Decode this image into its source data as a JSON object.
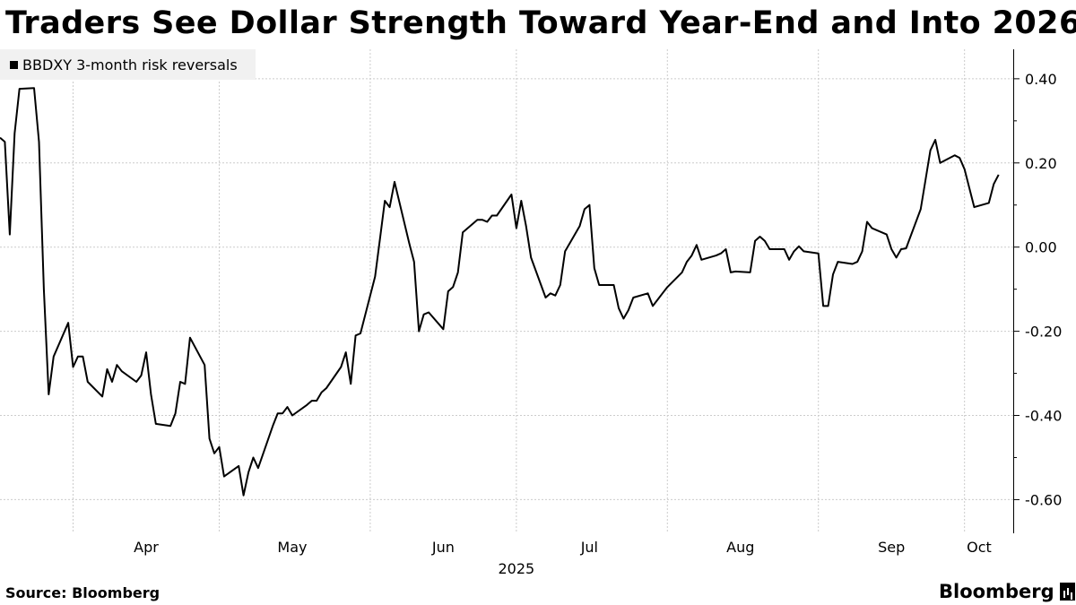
{
  "chart_data": {
    "type": "line",
    "title": "Traders See Dollar Strength Toward Year-End and Into 2026",
    "legend_position": "top-left",
    "grid": true,
    "series": [
      {
        "name": "BBDXY 3-month risk reversals",
        "color": "#000000",
        "points": [
          [
            "2025-03-17",
            0.26
          ],
          [
            "2025-03-18",
            0.25
          ],
          [
            "2025-03-19",
            0.03
          ],
          [
            "2025-03-20",
            0.27
          ],
          [
            "2025-03-21",
            0.376
          ],
          [
            "2025-03-24",
            0.378
          ],
          [
            "2025-03-25",
            0.25
          ],
          [
            "2025-03-26",
            -0.1
          ],
          [
            "2025-03-27",
            -0.35
          ],
          [
            "2025-03-28",
            -0.26
          ],
          [
            "2025-03-31",
            -0.18
          ],
          [
            "2025-04-01",
            -0.285
          ],
          [
            "2025-04-02",
            -0.26
          ],
          [
            "2025-04-03",
            -0.26
          ],
          [
            "2025-04-04",
            -0.32
          ],
          [
            "2025-04-07",
            -0.355
          ],
          [
            "2025-04-08",
            -0.29
          ],
          [
            "2025-04-09",
            -0.32
          ],
          [
            "2025-04-10",
            -0.28
          ],
          [
            "2025-04-11",
            -0.295
          ],
          [
            "2025-04-14",
            -0.32
          ],
          [
            "2025-04-15",
            -0.305
          ],
          [
            "2025-04-16",
            -0.25
          ],
          [
            "2025-04-17",
            -0.35
          ],
          [
            "2025-04-18",
            -0.42
          ],
          [
            "2025-04-21",
            -0.425
          ],
          [
            "2025-04-22",
            -0.395
          ],
          [
            "2025-04-23",
            -0.32
          ],
          [
            "2025-04-24",
            -0.325
          ],
          [
            "2025-04-25",
            -0.215
          ],
          [
            "2025-04-28",
            -0.28
          ],
          [
            "2025-04-29",
            -0.455
          ],
          [
            "2025-04-30",
            -0.49
          ],
          [
            "2025-05-01",
            -0.475
          ],
          [
            "2025-05-02",
            -0.545
          ],
          [
            "2025-05-05",
            -0.52
          ],
          [
            "2025-05-06",
            -0.59
          ],
          [
            "2025-05-07",
            -0.535
          ],
          [
            "2025-05-08",
            -0.5
          ],
          [
            "2025-05-09",
            -0.525
          ],
          [
            "2025-05-12",
            -0.425
          ],
          [
            "2025-05-13",
            -0.395
          ],
          [
            "2025-05-14",
            -0.395
          ],
          [
            "2025-05-15",
            -0.38
          ],
          [
            "2025-05-16",
            -0.4
          ],
          [
            "2025-05-19",
            -0.375
          ],
          [
            "2025-05-20",
            -0.365
          ],
          [
            "2025-05-21",
            -0.365
          ],
          [
            "2025-05-22",
            -0.345
          ],
          [
            "2025-05-23",
            -0.335
          ],
          [
            "2025-05-26",
            -0.285
          ],
          [
            "2025-05-27",
            -0.25
          ],
          [
            "2025-05-28",
            -0.325
          ],
          [
            "2025-05-29",
            -0.21
          ],
          [
            "2025-05-30",
            -0.205
          ],
          [
            "2025-06-02",
            -0.07
          ],
          [
            "2025-06-03",
            0.02
          ],
          [
            "2025-06-04",
            0.11
          ],
          [
            "2025-06-05",
            0.095
          ],
          [
            "2025-06-06",
            0.155
          ],
          [
            "2025-06-09",
            0.01
          ],
          [
            "2025-06-10",
            -0.035
          ],
          [
            "2025-06-11",
            -0.2
          ],
          [
            "2025-06-12",
            -0.16
          ],
          [
            "2025-06-13",
            -0.155
          ],
          [
            "2025-06-16",
            -0.195
          ],
          [
            "2025-06-17",
            -0.105
          ],
          [
            "2025-06-18",
            -0.095
          ],
          [
            "2025-06-19",
            -0.06
          ],
          [
            "2025-06-20",
            0.035
          ],
          [
            "2025-06-23",
            0.065
          ],
          [
            "2025-06-24",
            0.065
          ],
          [
            "2025-06-25",
            0.06
          ],
          [
            "2025-06-26",
            0.075
          ],
          [
            "2025-06-27",
            0.075
          ],
          [
            "2025-06-30",
            0.125
          ],
          [
            "2025-07-01",
            0.045
          ],
          [
            "2025-07-02",
            0.11
          ],
          [
            "2025-07-03",
            0.05
          ],
          [
            "2025-07-04",
            -0.025
          ],
          [
            "2025-07-07",
            -0.12
          ],
          [
            "2025-07-08",
            -0.11
          ],
          [
            "2025-07-09",
            -0.115
          ],
          [
            "2025-07-10",
            -0.09
          ],
          [
            "2025-07-11",
            -0.01
          ],
          [
            "2025-07-14",
            0.05
          ],
          [
            "2025-07-15",
            0.09
          ],
          [
            "2025-07-16",
            0.1
          ],
          [
            "2025-07-17",
            -0.05
          ],
          [
            "2025-07-18",
            -0.09
          ],
          [
            "2025-07-21",
            -0.09
          ],
          [
            "2025-07-22",
            -0.145
          ],
          [
            "2025-07-23",
            -0.17
          ],
          [
            "2025-07-24",
            -0.15
          ],
          [
            "2025-07-25",
            -0.12
          ],
          [
            "2025-07-28",
            -0.11
          ],
          [
            "2025-07-29",
            -0.14
          ],
          [
            "2025-07-30",
            -0.125
          ],
          [
            "2025-07-31",
            -0.11
          ],
          [
            "2025-08-01",
            -0.095
          ],
          [
            "2025-08-04",
            -0.06
          ],
          [
            "2025-08-05",
            -0.035
          ],
          [
            "2025-08-06",
            -0.02
          ],
          [
            "2025-08-07",
            0.005
          ],
          [
            "2025-08-08",
            -0.03
          ],
          [
            "2025-08-11",
            -0.02
          ],
          [
            "2025-08-12",
            -0.015
          ],
          [
            "2025-08-13",
            -0.005
          ],
          [
            "2025-08-14",
            -0.06
          ],
          [
            "2025-08-15",
            -0.058
          ],
          [
            "2025-08-18",
            -0.06
          ],
          [
            "2025-08-19",
            0.015
          ],
          [
            "2025-08-20",
            0.025
          ],
          [
            "2025-08-21",
            0.015
          ],
          [
            "2025-08-22",
            -0.005
          ],
          [
            "2025-08-25",
            -0.005
          ],
          [
            "2025-08-26",
            -0.03
          ],
          [
            "2025-08-27",
            -0.01
          ],
          [
            "2025-08-28",
            0.002
          ],
          [
            "2025-08-29",
            -0.01
          ],
          [
            "2025-09-01",
            -0.015
          ],
          [
            "2025-09-02",
            -0.14
          ],
          [
            "2025-09-03",
            -0.14
          ],
          [
            "2025-09-04",
            -0.065
          ],
          [
            "2025-09-05",
            -0.035
          ],
          [
            "2025-09-08",
            -0.04
          ],
          [
            "2025-09-09",
            -0.035
          ],
          [
            "2025-09-10",
            -0.01
          ],
          [
            "2025-09-11",
            0.06
          ],
          [
            "2025-09-12",
            0.045
          ],
          [
            "2025-09-15",
            0.03
          ],
          [
            "2025-09-16",
            -0.005
          ],
          [
            "2025-09-17",
            -0.025
          ],
          [
            "2025-09-18",
            -0.005
          ],
          [
            "2025-09-19",
            -0.003
          ],
          [
            "2025-09-22",
            0.09
          ],
          [
            "2025-09-23",
            0.16
          ],
          [
            "2025-09-24",
            0.23
          ],
          [
            "2025-09-25",
            0.255
          ],
          [
            "2025-09-26",
            0.2
          ],
          [
            "2025-09-29",
            0.218
          ],
          [
            "2025-09-30",
            0.212
          ],
          [
            "2025-10-01",
            0.185
          ],
          [
            "2025-10-02",
            0.14
          ],
          [
            "2025-10-03",
            0.095
          ],
          [
            "2025-10-06",
            0.105
          ],
          [
            "2025-10-07",
            0.15
          ],
          [
            "2025-10-08",
            0.172
          ]
        ]
      }
    ],
    "y_axis": {
      "position": "right",
      "ylim": [
        -0.68,
        0.47
      ],
      "ticks": [
        0.4,
        0.2,
        0.0,
        -0.2,
        -0.4,
        -0.6
      ],
      "tick_labels": [
        "0.40",
        "0.20",
        "0.00",
        "-0.20",
        "-0.40",
        "-0.60"
      ]
    },
    "x_axis": {
      "xlim": [
        "2025-03-17",
        "2025-10-11"
      ],
      "month_labels": [
        {
          "label": "Apr",
          "center": "2025-04-16"
        },
        {
          "label": "May",
          "center": "2025-05-16"
        },
        {
          "label": "Jun",
          "center": "2025-06-16"
        },
        {
          "label": "Jul",
          "center": "2025-07-16"
        },
        {
          "label": "Aug",
          "center": "2025-08-16"
        },
        {
          "label": "Sep",
          "center": "2025-09-16"
        },
        {
          "label": "Oct",
          "center": "2025-10-04"
        }
      ],
      "month_boundaries": [
        "2025-04-01",
        "2025-05-01",
        "2025-06-01",
        "2025-07-01",
        "2025-08-01",
        "2025-09-01",
        "2025-10-01"
      ],
      "year_label": "2025",
      "year_label_at": "2025-07-01"
    }
  },
  "footer": {
    "source": "Source: Bloomberg",
    "brand": "Bloomberg"
  },
  "colors": {
    "line": "#000000",
    "grid": "#cccccc",
    "legend_bg": "#f1f1f1"
  }
}
